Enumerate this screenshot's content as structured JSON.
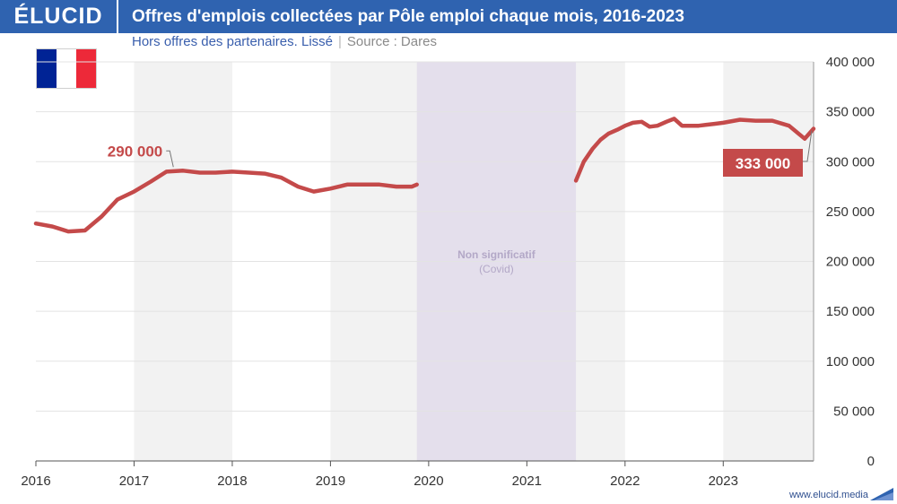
{
  "header": {
    "logo": "ÉLUCID",
    "title": "Offres d'emplois collectées par Pôle emploi chaque mois, 2016-2023"
  },
  "subtitle": {
    "text": "Hors offres des partenaires. Lissé",
    "separator": "|",
    "source": "Source : Dares"
  },
  "footer": {
    "url": "www.elucid.media"
  },
  "flag": {
    "colors": [
      "#002395",
      "#ffffff",
      "#ed2939"
    ]
  },
  "colors": {
    "brand": "#2f63b0",
    "series": "#c44a4a",
    "covid_band": "#e4dfec",
    "alt_band": "#f2f2f2"
  },
  "chart_data": {
    "type": "line",
    "title": "Offres d'emplois collectées par Pôle emploi chaque mois, 2016-2023",
    "xlim": [
      2016,
      2023.92
    ],
    "ylim": [
      0,
      400000
    ],
    "x_ticks": [
      2016,
      2017,
      2018,
      2019,
      2020,
      2021,
      2022,
      2023
    ],
    "x_tick_labels": [
      "2016",
      "2017",
      "2018",
      "2019",
      "2020",
      "2021",
      "2022",
      "2023"
    ],
    "y_ticks": [
      0,
      50000,
      100000,
      150000,
      200000,
      250000,
      300000,
      350000,
      400000
    ],
    "y_tick_labels": [
      "0",
      "50 000",
      "100 000",
      "150 000",
      "200 000",
      "250 000",
      "300 000",
      "350 000",
      "400 000"
    ],
    "y_axis_side": "right",
    "grid": true,
    "covid_band": {
      "start": 2019.88,
      "end": 2021.5,
      "label": "Non significatif",
      "sublabel": "(Covid)"
    },
    "series": [
      {
        "segments": [
          [
            [
              2016.0,
              238000
            ],
            [
              2016.17,
              235000
            ],
            [
              2016.33,
              230000
            ],
            [
              2016.5,
              231000
            ],
            [
              2016.67,
              245000
            ],
            [
              2016.83,
              262000
            ],
            [
              2017.0,
              270000
            ],
            [
              2017.17,
              280000
            ],
            [
              2017.33,
              290000
            ],
            [
              2017.5,
              291000
            ],
            [
              2017.67,
              289000
            ],
            [
              2017.83,
              289000
            ],
            [
              2018.0,
              290000
            ],
            [
              2018.17,
              289000
            ],
            [
              2018.33,
              288000
            ],
            [
              2018.5,
              284000
            ],
            [
              2018.67,
              275000
            ],
            [
              2018.83,
              270000
            ],
            [
              2019.0,
              273000
            ],
            [
              2019.17,
              277000
            ],
            [
              2019.33,
              277000
            ],
            [
              2019.5,
              277000
            ],
            [
              2019.67,
              275000
            ],
            [
              2019.83,
              275000
            ],
            [
              2019.88,
              277000
            ]
          ],
          [
            [
              2021.5,
              281000
            ],
            [
              2021.58,
              300000
            ],
            [
              2021.67,
              313000
            ],
            [
              2021.75,
              322000
            ],
            [
              2021.83,
              328000
            ],
            [
              2021.92,
              332000
            ],
            [
              2022.0,
              336000
            ],
            [
              2022.08,
              339000
            ],
            [
              2022.17,
              340000
            ],
            [
              2022.25,
              335000
            ],
            [
              2022.33,
              336000
            ],
            [
              2022.42,
              340000
            ],
            [
              2022.5,
              343000
            ],
            [
              2022.58,
              336000
            ],
            [
              2022.67,
              336000
            ],
            [
              2022.75,
              336000
            ],
            [
              2022.83,
              337000
            ],
            [
              2022.92,
              338000
            ],
            [
              2023.0,
              339000
            ],
            [
              2023.17,
              342000
            ],
            [
              2023.33,
              341000
            ],
            [
              2023.5,
              341000
            ],
            [
              2023.67,
              336000
            ],
            [
              2023.83,
              323000
            ],
            [
              2023.92,
              333000
            ]
          ]
        ]
      }
    ],
    "annotations": [
      {
        "text": "290 000",
        "x": 2017.4,
        "y": 291000,
        "style": "text"
      },
      {
        "text": "333 000",
        "x": 2023.92,
        "y": 333000,
        "style": "box"
      }
    ]
  }
}
